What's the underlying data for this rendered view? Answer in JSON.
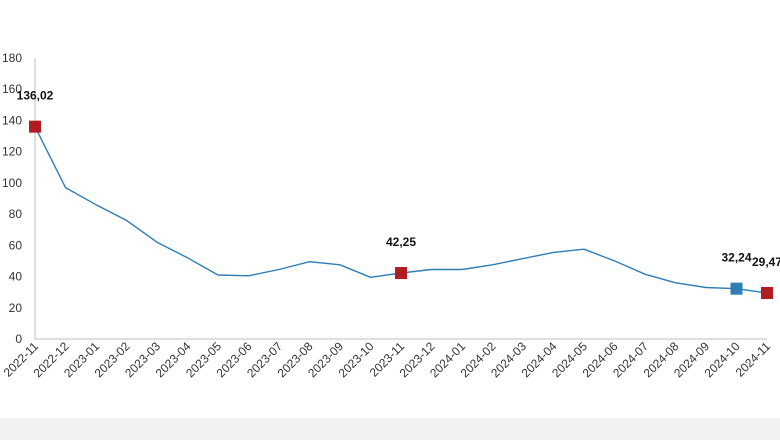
{
  "chart_data": {
    "type": "line",
    "title": "",
    "xlabel": "",
    "ylabel": "",
    "ylim": [
      0,
      180
    ],
    "yticks": [
      0,
      20,
      40,
      60,
      80,
      100,
      120,
      140,
      160,
      180
    ],
    "grid": false,
    "categories": [
      "2022-11",
      "2022-12",
      "2023-01",
      "2023-02",
      "2023-03",
      "2023-04",
      "2023-05",
      "2023-06",
      "2023-07",
      "2023-08",
      "2023-09",
      "2023-10",
      "2023-11",
      "2023-12",
      "2024-01",
      "2024-02",
      "2024-03",
      "2024-04",
      "2024-05",
      "2024-06",
      "2024-07",
      "2024-08",
      "2024-09",
      "2024-10",
      "2024-11"
    ],
    "series": [
      {
        "color": "#2e7db5",
        "values": [
          136.02,
          97,
          86,
          76,
          62,
          52,
          41,
          40.5,
          44.5,
          49.5,
          47.5,
          39.5,
          42.25,
          44.5,
          44.5,
          47.5,
          51.5,
          55.5,
          57.5,
          50,
          41.5,
          36,
          33,
          32.24,
          29.47
        ]
      }
    ],
    "highlights": [
      {
        "category": "2022-11",
        "value": 136.02,
        "label": "136,02",
        "marker_color": "#b01c22"
      },
      {
        "category": "2023-11",
        "value": 42.25,
        "label": "42,25",
        "marker_color": "#b01c22"
      },
      {
        "category": "2024-10",
        "value": 32.24,
        "label": "32,24",
        "marker_color": "#2e7db5"
      },
      {
        "category": "2024-11",
        "value": 29.47,
        "label": "29,47",
        "marker_color": "#b01c22"
      }
    ]
  }
}
